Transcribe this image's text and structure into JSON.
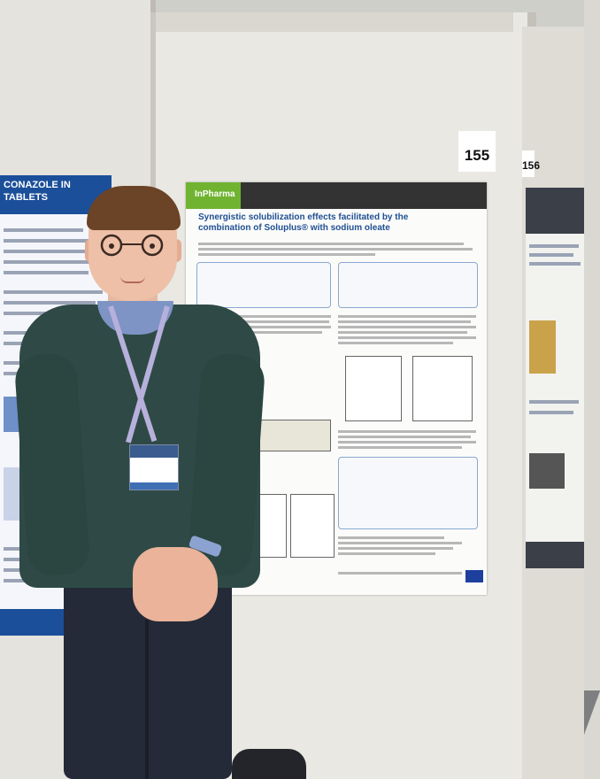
{
  "board_numbers": {
    "center": "155",
    "right": "156"
  },
  "main_poster": {
    "logo": "InPharma",
    "title": "Synergistic solubilization effects facilitated by the combination of Soluplus® with sodium oleate"
  },
  "left_poster": {
    "title": "CONAZOLE IN TABLETS"
  },
  "colors": {
    "poster_header": "#333333",
    "inpharma_green": "#6fb330",
    "title_blue": "#1f4f93",
    "sweater": "#2f4a46",
    "lanyard": "#b7b0dc"
  }
}
